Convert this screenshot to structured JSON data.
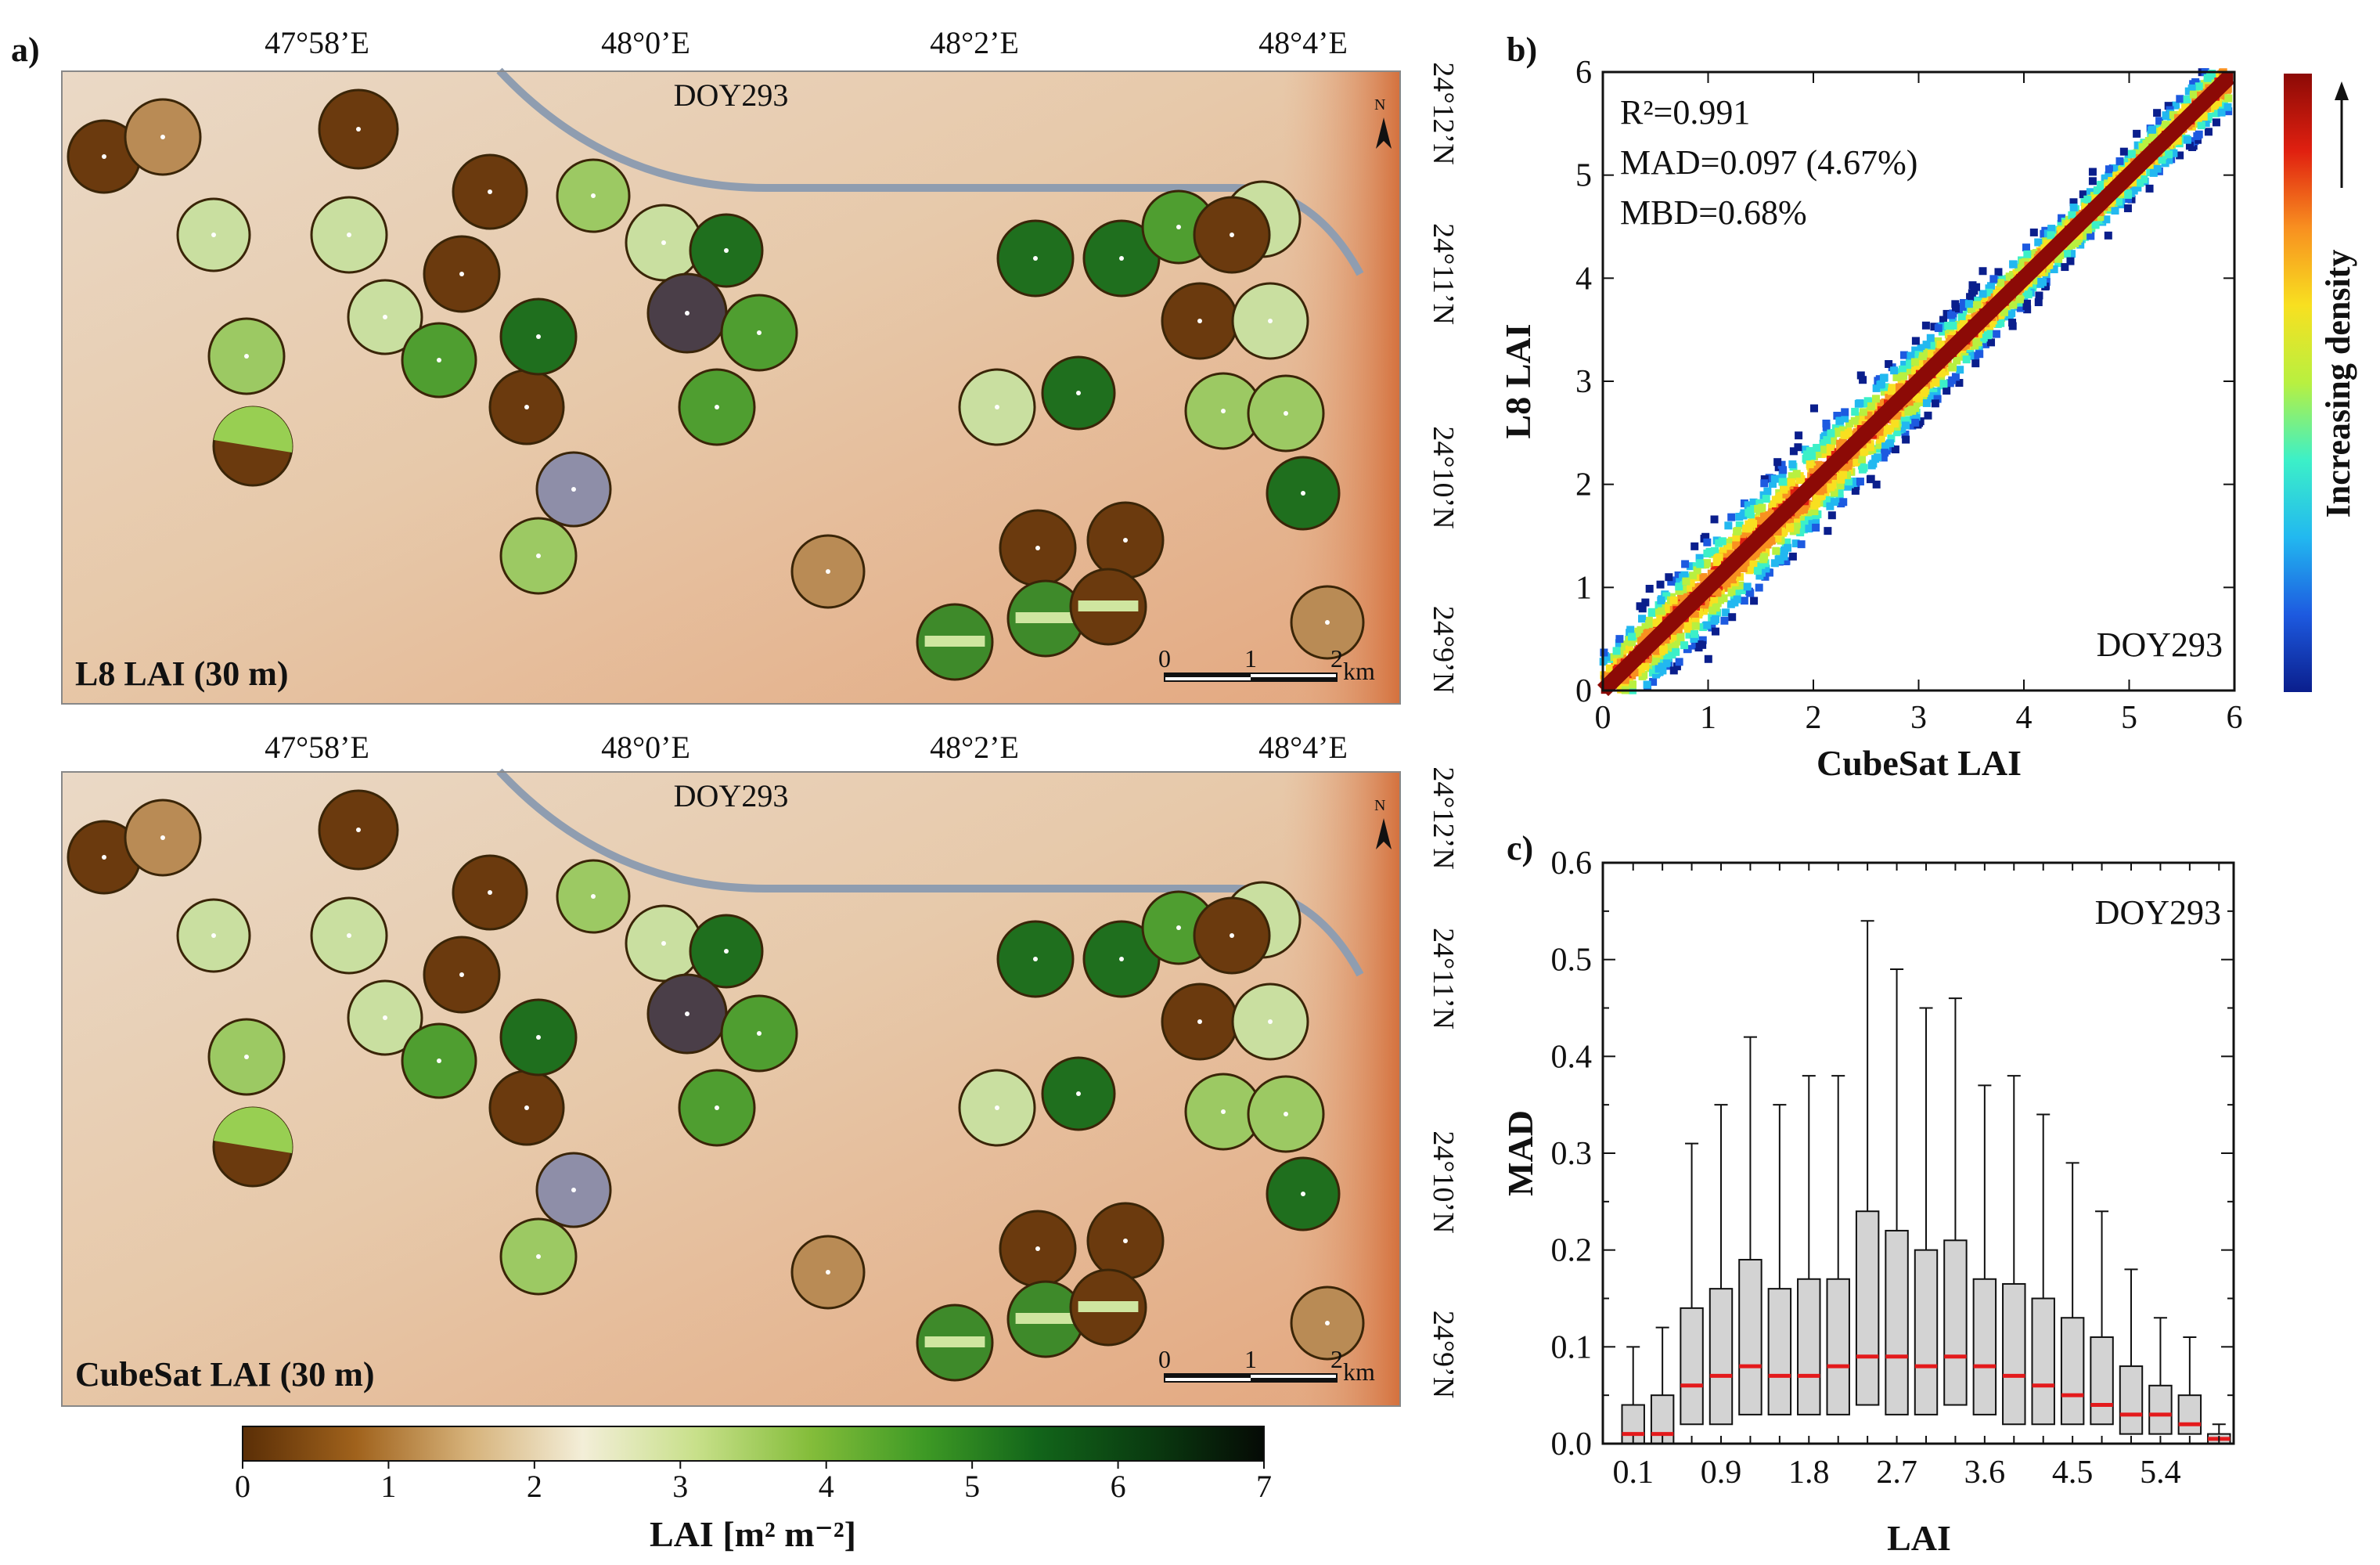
{
  "panels": {
    "a_label": "a)",
    "b_label": "b)",
    "c_label": "c)"
  },
  "maps": {
    "lon_ticks": [
      "47°58’E",
      "48°0’E",
      "48°2’E",
      "48°4’E"
    ],
    "lat_ticks": [
      "24°12’N",
      "24°11’N",
      "24°10’N",
      "24°9’N"
    ],
    "north_letter": "N",
    "scale_ticks": [
      "0",
      "1",
      "2"
    ],
    "scale_unit": "km",
    "top": {
      "doy": "DOY293",
      "title": "L8 LAI (30 m)"
    },
    "bottom": {
      "doy": "DOY293",
      "title": "CubeSat LAI (30 m)"
    },
    "colorbar": {
      "ticks": [
        "0",
        "1",
        "2",
        "3",
        "4",
        "5",
        "6",
        "7"
      ],
      "label": "LAI [m² m⁻²]",
      "colors": [
        "#5a2e06",
        "#a0621c",
        "#d6b27a",
        "#f3eed8",
        "#c8e08a",
        "#84bd3a",
        "#3e9a25",
        "#12651a",
        "#0a3b10",
        "#050a05"
      ]
    }
  },
  "chart_data": [
    {
      "type": "heatmap",
      "panel": "b",
      "title": "",
      "xlabel": "CubeSat LAI",
      "ylabel": "L8 LAI",
      "xlim": [
        0,
        6
      ],
      "ylim": [
        0,
        6
      ],
      "xticks": [
        "0",
        "1",
        "2",
        "3",
        "4",
        "5",
        "6"
      ],
      "yticks": [
        "0",
        "1",
        "2",
        "3",
        "4",
        "5",
        "6"
      ],
      "stats": {
        "r2": "R²=0.991",
        "mad": "MAD=0.097 (4.67%)",
        "mbd": "MBD=0.68%"
      },
      "doy": "DOY293",
      "colorbar_label": "Increasing density",
      "density_colors": [
        "#0a1e8c",
        "#1d5ae0",
        "#22b8f0",
        "#3cf0c8",
        "#b8f040",
        "#f8e020",
        "#f89020",
        "#e02010",
        "#8c0a06"
      ]
    },
    {
      "type": "box",
      "panel": "c",
      "xlabel": "LAI",
      "ylabel": "MAD",
      "ylim": [
        0,
        0.6
      ],
      "yticks": [
        "0.0",
        "0.1",
        "0.2",
        "0.3",
        "0.4",
        "0.5",
        "0.6"
      ],
      "xtick_labels": [
        "0.1",
        "0.9",
        "1.8",
        "2.7",
        "3.6",
        "4.5",
        "5.4"
      ],
      "doy": "DOY293",
      "categories": [
        0.1,
        0.3,
        0.6,
        0.9,
        1.2,
        1.5,
        1.8,
        2.1,
        2.4,
        2.7,
        3.0,
        3.3,
        3.6,
        3.9,
        4.2,
        4.5,
        4.8,
        5.1,
        5.4,
        5.7,
        6.0
      ],
      "boxes": [
        {
          "min": 0.0,
          "q1": 0.0,
          "median": 0.01,
          "q3": 0.04,
          "max": 0.1
        },
        {
          "min": 0.0,
          "q1": 0.0,
          "median": 0.01,
          "q3": 0.05,
          "max": 0.12
        },
        {
          "min": 0.0,
          "q1": 0.02,
          "median": 0.06,
          "q3": 0.14,
          "max": 0.31
        },
        {
          "min": 0.0,
          "q1": 0.02,
          "median": 0.07,
          "q3": 0.16,
          "max": 0.35
        },
        {
          "min": 0.0,
          "q1": 0.03,
          "median": 0.08,
          "q3": 0.19,
          "max": 0.42
        },
        {
          "min": 0.0,
          "q1": 0.03,
          "median": 0.07,
          "q3": 0.16,
          "max": 0.35
        },
        {
          "min": 0.0,
          "q1": 0.03,
          "median": 0.07,
          "q3": 0.17,
          "max": 0.38
        },
        {
          "min": 0.0,
          "q1": 0.03,
          "median": 0.08,
          "q3": 0.17,
          "max": 0.38
        },
        {
          "min": 0.0,
          "q1": 0.04,
          "median": 0.09,
          "q3": 0.24,
          "max": 0.54
        },
        {
          "min": 0.0,
          "q1": 0.03,
          "median": 0.09,
          "q3": 0.22,
          "max": 0.49
        },
        {
          "min": 0.0,
          "q1": 0.03,
          "median": 0.08,
          "q3": 0.2,
          "max": 0.45
        },
        {
          "min": 0.0,
          "q1": 0.04,
          "median": 0.09,
          "q3": 0.21,
          "max": 0.46
        },
        {
          "min": 0.0,
          "q1": 0.03,
          "median": 0.08,
          "q3": 0.17,
          "max": 0.37
        },
        {
          "min": 0.0,
          "q1": 0.02,
          "median": 0.07,
          "q3": 0.165,
          "max": 0.38
        },
        {
          "min": 0.0,
          "q1": 0.02,
          "median": 0.06,
          "q3": 0.15,
          "max": 0.34
        },
        {
          "min": 0.0,
          "q1": 0.02,
          "median": 0.05,
          "q3": 0.13,
          "max": 0.29
        },
        {
          "min": 0.0,
          "q1": 0.02,
          "median": 0.04,
          "q3": 0.11,
          "max": 0.24
        },
        {
          "min": 0.0,
          "q1": 0.01,
          "median": 0.03,
          "q3": 0.08,
          "max": 0.18
        },
        {
          "min": 0.0,
          "q1": 0.01,
          "median": 0.03,
          "q3": 0.06,
          "max": 0.13
        },
        {
          "min": 0.0,
          "q1": 0.01,
          "median": 0.02,
          "q3": 0.05,
          "max": 0.11
        },
        {
          "min": 0.0,
          "q1": 0.0,
          "median": 0.005,
          "q3": 0.01,
          "max": 0.02
        }
      ],
      "box_fill": "#d3d3d3",
      "median_color": "#e41a1c"
    }
  ]
}
